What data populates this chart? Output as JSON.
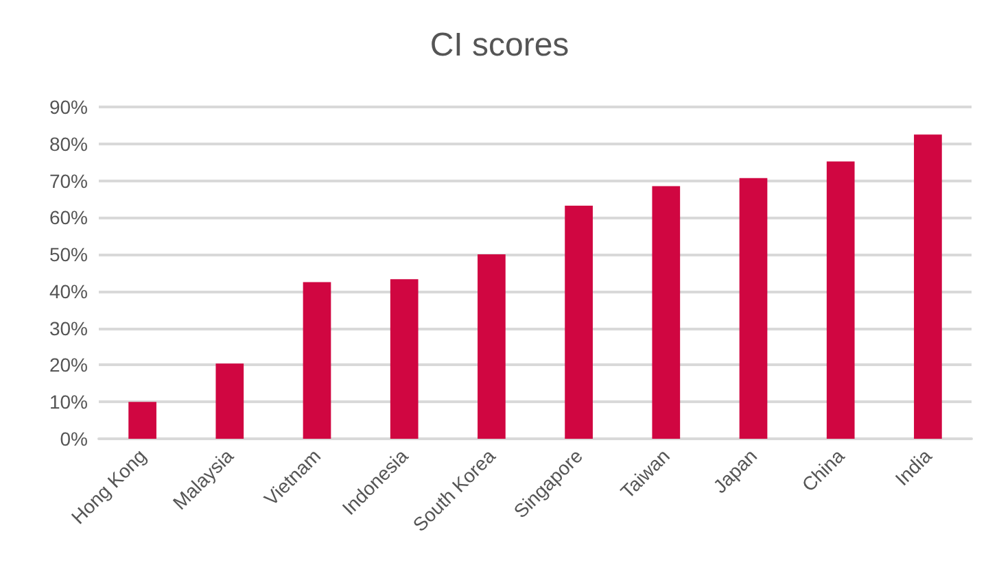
{
  "chart_data": {
    "type": "bar",
    "title": "CI scores",
    "categories": [
      "Hong Kong",
      "Malaysia",
      "Vietnam",
      "Indonesia",
      "South Korea",
      "Singapore",
      "Taiwan",
      "Japan",
      "China",
      "India"
    ],
    "values": [
      10,
      20.4,
      42.5,
      43.3,
      50,
      63.2,
      68.5,
      70.7,
      75.2,
      82.5
    ],
    "color": "#d00641",
    "ylim": [
      0,
      90
    ],
    "yticks": [
      {
        "value": 0,
        "label": "0%"
      },
      {
        "value": 10,
        "label": "10%"
      },
      {
        "value": 20,
        "label": "20%"
      },
      {
        "value": 30,
        "label": "30%"
      },
      {
        "value": 40,
        "label": "40%"
      },
      {
        "value": 50,
        "label": "50%"
      },
      {
        "value": 60,
        "label": "60%"
      },
      {
        "value": 70,
        "label": "70%"
      },
      {
        "value": 80,
        "label": "80%"
      },
      {
        "value": 90,
        "label": "90%"
      }
    ],
    "grid": true
  }
}
